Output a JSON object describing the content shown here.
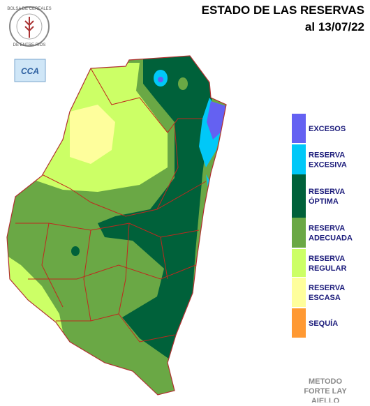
{
  "header": {
    "title": "ESTADO DE LAS RESERVAS",
    "date": "al 13/07/22"
  },
  "logos": {
    "bolsa_top": "BOLSA DE CEREALES",
    "bolsa_bottom": "DE ENTRE RIOS",
    "cca": "CCA"
  },
  "legend": {
    "items": [
      {
        "lines": [
          "EXCESOS"
        ],
        "color": "#6461f2"
      },
      {
        "lines": [
          "RESERVA",
          "EXCESIVA"
        ],
        "color": "#00c8f8"
      },
      {
        "lines": [
          "RESERVA",
          "ÓPTIMA"
        ],
        "color": "#00613a"
      },
      {
        "lines": [
          "RESERVA",
          "ADECUADA"
        ],
        "color": "#6aa845"
      },
      {
        "lines": [
          "RESERVA",
          "REGULAR"
        ],
        "color": "#ccff66"
      },
      {
        "lines": [
          "RESERVA",
          "ESCASA"
        ],
        "color": "#fefe9c"
      },
      {
        "lines": [
          "SEQUÍA"
        ],
        "color": "#ff9933"
      }
    ]
  },
  "method": [
    "METODO",
    "FORTE LAY",
    "AIELLO"
  ]
}
